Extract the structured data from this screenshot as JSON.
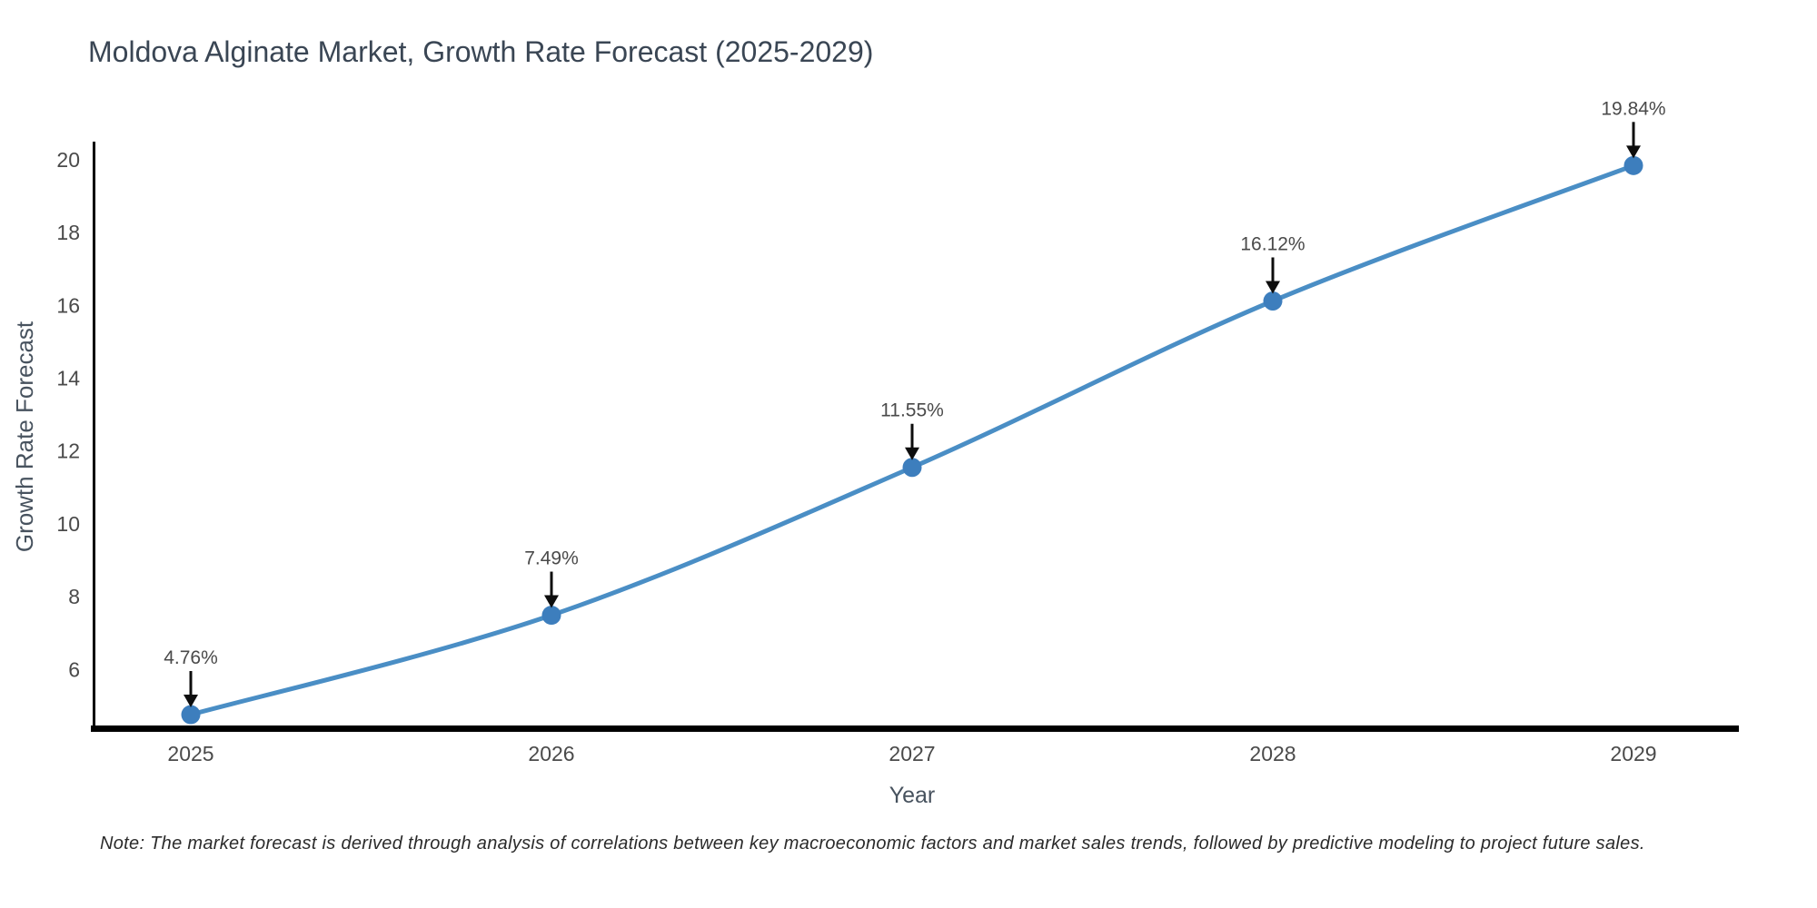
{
  "page": {
    "note": "Note: The market forecast is derived through analysis of correlations between key macroeconomic factors and market sales trends, followed by predictive modeling to project future sales."
  },
  "chart_data": {
    "type": "line",
    "title": "Moldova Alginate Market, Growth Rate Forecast (2025-2029)",
    "xlabel": "Year",
    "ylabel": "Growth Rate Forecast",
    "categories": [
      "2025",
      "2026",
      "2027",
      "2028",
      "2029"
    ],
    "values": [
      4.76,
      7.49,
      11.55,
      16.12,
      19.84
    ],
    "point_labels": [
      "4.76%",
      "7.49%",
      "11.55%",
      "16.12%",
      "19.84%"
    ],
    "yticks": [
      "6",
      "8",
      "10",
      "12",
      "14",
      "16",
      "18",
      "20"
    ],
    "ylim": [
      4.4,
      20.5
    ],
    "grid": false,
    "legend": false,
    "smooth": true,
    "colors": {
      "line": "#4a8ec5",
      "marker": "#3d7ebd",
      "axis": "#000000",
      "tick_text": "#4a4a4a",
      "axis_title_text": "#47525e",
      "annotation_text": "#4a4a4a",
      "annotation_arrow": "#0d0d0d",
      "title_text": "#3a4654",
      "background": "#ffffff"
    }
  }
}
